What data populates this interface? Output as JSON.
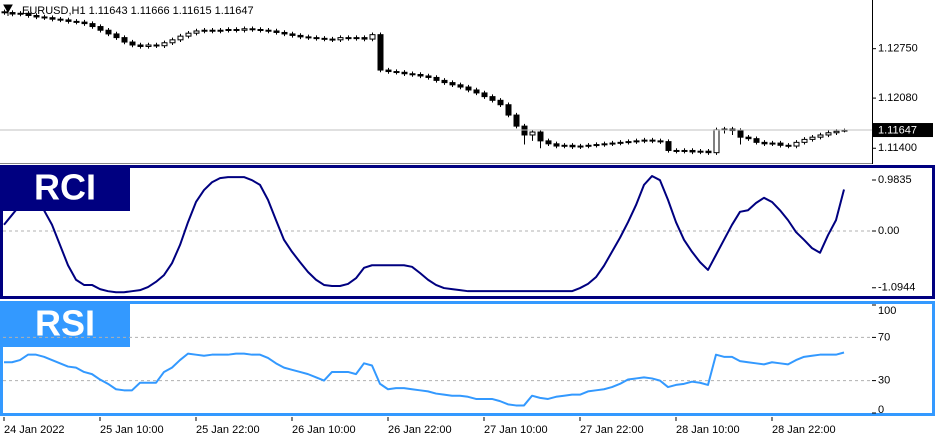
{
  "chart_data": [
    {
      "type": "candlestick",
      "title": "EURUSD,H1 1.11643 1.11666 1.11615 1.11647",
      "categories": [
        "24 Jan 2022",
        null,
        null,
        null,
        null,
        null,
        null,
        null,
        null,
        null,
        null,
        null,
        "25 Jan 10:00",
        null,
        null,
        null,
        null,
        null,
        null,
        null,
        null,
        null,
        null,
        null,
        "25 Jan 22:00",
        null,
        null,
        null,
        null,
        null,
        null,
        null,
        null,
        null,
        null,
        null,
        "26 Jan 10:00",
        null,
        null,
        null,
        null,
        null,
        null,
        null,
        null,
        null,
        null,
        null,
        "26 Jan 22:00",
        null,
        null,
        null,
        null,
        null,
        null,
        null,
        null,
        null,
        null,
        null,
        "27 Jan 10:00",
        null,
        null,
        null,
        null,
        null,
        null,
        null,
        null,
        null,
        null,
        null,
        "27 Jan 22:00",
        null,
        null,
        null,
        null,
        null,
        null,
        null,
        null,
        null,
        null,
        null,
        "28 Jan 10:00",
        null,
        null,
        null,
        null,
        null,
        null,
        null,
        null,
        null,
        null,
        null,
        "28 Jan 22:00",
        null,
        null,
        null,
        null,
        null,
        null,
        null,
        null,
        null
      ],
      "open": [
        1.1325,
        1.1324,
        1.1322,
        1.1323,
        1.132,
        1.1318,
        1.1317,
        1.1315,
        1.1314,
        1.1312,
        1.1311,
        1.1309,
        1.1305,
        1.13,
        1.1295,
        1.129,
        1.1284,
        1.128,
        1.1278,
        1.128,
        1.1279,
        1.1283,
        1.1287,
        1.1292,
        1.1296,
        1.1299,
        1.13,
        1.1299,
        1.13,
        1.1301,
        1.13,
        1.1302,
        1.1301,
        1.13,
        1.1299,
        1.1297,
        1.1295,
        1.1293,
        1.1291,
        1.129,
        1.1289,
        1.1288,
        1.1287,
        1.129,
        1.1289,
        1.129,
        1.1288,
        1.1294,
        1.1246,
        1.1244,
        1.1243,
        1.1241,
        1.124,
        1.1238,
        1.1236,
        1.1232,
        1.1229,
        1.1226,
        1.1223,
        1.1219,
        1.1215,
        1.121,
        1.1205,
        1.1199,
        1.1185,
        1.117,
        1.1158,
        1.1162,
        1.115,
        1.1146,
        1.1143,
        1.1144,
        1.1142,
        1.1143,
        1.1144,
        1.1145,
        1.1146,
        1.1147,
        1.1148,
        1.1149,
        1.115,
        1.1151,
        1.115,
        1.1149,
        1.1137,
        1.1136,
        1.1137,
        1.1135,
        1.1136,
        1.1134,
        1.1165,
        1.1166,
        1.1164,
        1.1155,
        1.1153,
        1.1148,
        1.1146,
        1.1147,
        1.1144,
        1.1143,
        1.1148,
        1.1152,
        1.1155,
        1.1158,
        1.1161,
        1.11643
      ],
      "high": [
        1.1328,
        1.1327,
        1.1326,
        1.1326,
        1.1323,
        1.1321,
        1.132,
        1.1318,
        1.1317,
        1.1315,
        1.1314,
        1.1312,
        1.1308,
        1.1303,
        1.1298,
        1.1293,
        1.1287,
        1.1283,
        1.1283,
        1.1283,
        1.1286,
        1.129,
        1.1295,
        1.1299,
        1.1302,
        1.1303,
        1.1303,
        1.1303,
        1.1304,
        1.1304,
        1.1305,
        1.1305,
        1.1304,
        1.1303,
        1.1302,
        1.13,
        1.1298,
        1.1296,
        1.1294,
        1.1293,
        1.1292,
        1.1291,
        1.1293,
        1.1293,
        1.1293,
        1.1293,
        1.1297,
        1.1297,
        1.1249,
        1.1247,
        1.1246,
        1.1244,
        1.1243,
        1.1241,
        1.1239,
        1.1235,
        1.1232,
        1.1229,
        1.1226,
        1.1222,
        1.1218,
        1.1213,
        1.1208,
        1.1202,
        1.1188,
        1.1173,
        1.1165,
        1.1165,
        1.1153,
        1.1149,
        1.1147,
        1.1147,
        1.1146,
        1.1147,
        1.1148,
        1.1149,
        1.115,
        1.1151,
        1.1152,
        1.1153,
        1.1154,
        1.1154,
        1.1153,
        1.1152,
        1.114,
        1.114,
        1.114,
        1.1139,
        1.1139,
        1.1168,
        1.1169,
        1.1169,
        1.1167,
        1.1158,
        1.1156,
        1.1151,
        1.115,
        1.115,
        1.1147,
        1.1151,
        1.1155,
        1.1158,
        1.1161,
        1.1164,
        1.1166,
        1.11666
      ],
      "low": [
        1.1321,
        1.1319,
        1.1319,
        1.1317,
        1.1315,
        1.1314,
        1.1312,
        1.1311,
        1.1309,
        1.1308,
        1.1306,
        1.1302,
        1.1297,
        1.1292,
        1.1287,
        1.1281,
        1.1277,
        1.1275,
        1.1275,
        1.1276,
        1.1276,
        1.128,
        1.1284,
        1.1289,
        1.1293,
        1.1296,
        1.1296,
        1.1296,
        1.1297,
        1.1297,
        1.1297,
        1.1298,
        1.1297,
        1.1296,
        1.1294,
        1.1292,
        1.129,
        1.1288,
        1.1287,
        1.1286,
        1.1285,
        1.1284,
        1.1284,
        1.1286,
        1.1286,
        1.1285,
        1.1285,
        1.1243,
        1.1241,
        1.124,
        1.1238,
        1.1237,
        1.1235,
        1.1233,
        1.1229,
        1.1226,
        1.1223,
        1.122,
        1.1216,
        1.1212,
        1.1207,
        1.1202,
        1.1196,
        1.1182,
        1.1167,
        1.1145,
        1.115,
        1.114,
        1.1143,
        1.114,
        1.114,
        1.1139,
        1.1139,
        1.114,
        1.1141,
        1.1142,
        1.1143,
        1.1144,
        1.1145,
        1.1146,
        1.1147,
        1.1147,
        1.1146,
        1.1134,
        1.1133,
        1.1133,
        1.1132,
        1.1132,
        1.1131,
        1.1131,
        1.116,
        1.1158,
        1.1145,
        1.115,
        1.1145,
        1.1143,
        1.1143,
        1.1141,
        1.114,
        1.114,
        1.1145,
        1.1149,
        1.1152,
        1.1155,
        1.1158,
        1.11615
      ],
      "close": [
        1.1324,
        1.1322,
        1.1323,
        1.132,
        1.1318,
        1.1317,
        1.1315,
        1.1314,
        1.1312,
        1.1311,
        1.1309,
        1.1305,
        1.13,
        1.1295,
        1.129,
        1.1284,
        1.128,
        1.1278,
        1.128,
        1.1279,
        1.1283,
        1.1287,
        1.1292,
        1.1296,
        1.1299,
        1.13,
        1.1299,
        1.13,
        1.1301,
        1.13,
        1.1302,
        1.1301,
        1.13,
        1.1299,
        1.1297,
        1.1295,
        1.1293,
        1.1291,
        1.129,
        1.1289,
        1.1288,
        1.1287,
        1.129,
        1.1289,
        1.129,
        1.1288,
        1.1294,
        1.1246,
        1.1244,
        1.1243,
        1.1241,
        1.124,
        1.1238,
        1.1236,
        1.1232,
        1.1229,
        1.1226,
        1.1223,
        1.1219,
        1.1215,
        1.121,
        1.1205,
        1.1199,
        1.1185,
        1.117,
        1.1158,
        1.1162,
        1.115,
        1.1146,
        1.1143,
        1.1144,
        1.1142,
        1.1143,
        1.1144,
        1.1145,
        1.1146,
        1.1147,
        1.1148,
        1.1149,
        1.115,
        1.1151,
        1.115,
        1.1149,
        1.1137,
        1.1136,
        1.1137,
        1.1135,
        1.1136,
        1.1134,
        1.1165,
        1.1166,
        1.1164,
        1.1155,
        1.1153,
        1.1148,
        1.1146,
        1.1147,
        1.1144,
        1.1143,
        1.1148,
        1.1152,
        1.1155,
        1.1158,
        1.1161,
        1.1163,
        1.11647
      ],
      "ylim": [
        1.112,
        1.1341
      ],
      "yticks": [
        {
          "value": 1.1275,
          "label": "1.12750"
        },
        {
          "value": 1.1208,
          "label": "1.12080"
        },
        {
          "value": 1.114,
          "label": "1.11400"
        }
      ],
      "current_price": 1.11647,
      "up_color": "#ffffff",
      "down_color": "#000000"
    },
    {
      "type": "line",
      "title": "RCI",
      "series": [
        {
          "color": "#000080",
          "values": [
            0.12,
            0.31,
            0.5,
            0.5,
            0.5,
            0.4,
            0.12,
            -0.27,
            -0.66,
            -0.94,
            -1.04,
            -1.04,
            -1.12,
            -1.16,
            -1.18,
            -1.18,
            -1.16,
            -1.14,
            -1.08,
            -0.98,
            -0.85,
            -0.62,
            -0.27,
            0.17,
            0.56,
            0.79,
            0.94,
            1.02,
            1.04,
            1.04,
            1.04,
            0.98,
            0.89,
            0.6,
            0.21,
            -0.17,
            -0.4,
            -0.6,
            -0.79,
            -0.94,
            -1.04,
            -1.06,
            -1.06,
            -1.02,
            -0.91,
            -0.71,
            -0.66,
            -0.66,
            -0.66,
            -0.66,
            -0.66,
            -0.69,
            -0.81,
            -0.94,
            -1.04,
            -1.1,
            -1.12,
            -1.14,
            -1.16,
            -1.16,
            -1.16,
            -1.16,
            -1.16,
            -1.16,
            -1.16,
            -1.16,
            -1.16,
            -1.16,
            -1.16,
            -1.16,
            -1.16,
            -1.16,
            -1.1,
            -1.02,
            -0.89,
            -0.67,
            -0.4,
            -0.13,
            0.17,
            0.5,
            0.89,
            1.06,
            0.98,
            0.6,
            0.17,
            -0.17,
            -0.4,
            -0.6,
            -0.75,
            -0.46,
            -0.17,
            0.12,
            0.37,
            0.4,
            0.54,
            0.64,
            0.56,
            0.4,
            0.21,
            -0.02,
            -0.17,
            -0.33,
            -0.42,
            -0.08,
            0.21,
            0.8
          ]
        }
      ],
      "ylim": [
        -1.253,
        1.215
      ],
      "yticks": [
        0.9835,
        {
          "value": 0,
          "label": "0.00"
        },
        -1.0944
      ],
      "levels": [
        0
      ]
    },
    {
      "type": "line",
      "title": "RSI",
      "series": [
        {
          "color": "#3399ff",
          "values": [
            47,
            47,
            49,
            54,
            54,
            52,
            49,
            46,
            43,
            42,
            38,
            36,
            31,
            27,
            22,
            21,
            21,
            28,
            28,
            28,
            38,
            42,
            49,
            55,
            54,
            53,
            54,
            54,
            54,
            55,
            55,
            54,
            54,
            51,
            46,
            42,
            40,
            38,
            36,
            33,
            30,
            38,
            38,
            38,
            36,
            46,
            44,
            27,
            22,
            23,
            23,
            22,
            21,
            20,
            18,
            17,
            16,
            16,
            15,
            13,
            13,
            13,
            11,
            8,
            7,
            7,
            16,
            14,
            13,
            15,
            16,
            17,
            17,
            20,
            21,
            22,
            24,
            27,
            31,
            32,
            33,
            32,
            30,
            24,
            26,
            27,
            29,
            28,
            26,
            54,
            52,
            52,
            48,
            47,
            46,
            45,
            47,
            46,
            45,
            49,
            52,
            53,
            54,
            54,
            54,
            56
          ]
        }
      ],
      "ylim": [
        0,
        100
      ],
      "yticks": [
        100,
        70,
        30,
        0
      ],
      "levels": [
        70,
        30
      ]
    }
  ]
}
